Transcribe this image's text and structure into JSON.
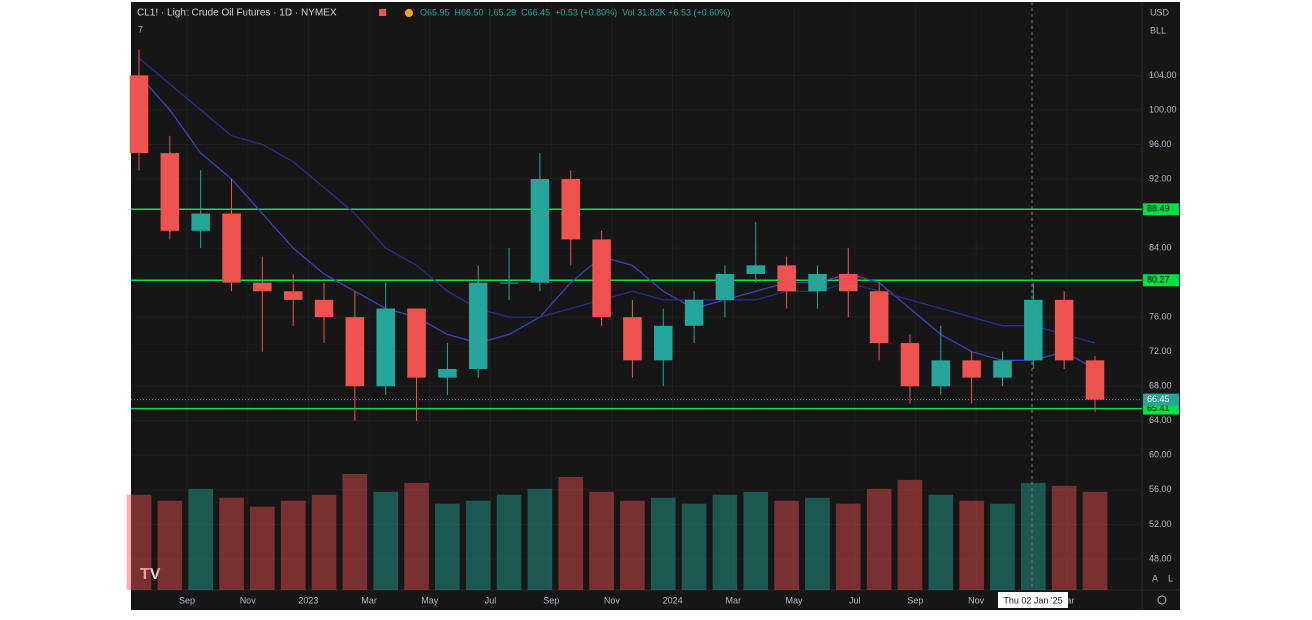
{
  "chart_data": {
    "type": "candlestick",
    "title": "CL1! · Light Crude Oil Futures · 1D · NYMEX",
    "legend_values": [
      "O65.95",
      "H66.50",
      "L65.29",
      "C66.45",
      "+0.53 (+0.80%)",
      "Vol 31.82K +6.53 (+0.60%)"
    ],
    "currency": "USD",
    "unit": "BLL",
    "collapse": "7",
    "open": [
      104,
      95,
      86,
      88,
      80,
      79,
      78,
      76,
      68,
      77,
      69,
      70,
      80,
      80,
      92,
      85,
      76,
      71,
      75,
      78,
      81,
      82,
      79,
      81,
      79,
      73,
      68,
      71,
      69,
      71,
      78,
      71
    ],
    "high": [
      107,
      97,
      93,
      92,
      83,
      81,
      80,
      79,
      80,
      77,
      73,
      82,
      84,
      95,
      93,
      86,
      78,
      77,
      79,
      82,
      87,
      83,
      82,
      84,
      80,
      74,
      75,
      72,
      72,
      80,
      79,
      71.5
    ],
    "low": [
      93,
      85,
      84,
      79,
      72,
      75,
      73,
      64,
      67,
      64,
      67,
      69,
      78,
      79,
      82,
      75,
      69,
      68,
      73,
      76,
      80,
      77,
      77,
      76,
      71,
      66,
      67,
      66,
      68,
      70,
      70,
      65
    ],
    "close": [
      95,
      86,
      88,
      80,
      79,
      78,
      76,
      68,
      77,
      69,
      70,
      80,
      80,
      92,
      85,
      76,
      71,
      75,
      78,
      81,
      82,
      79,
      81,
      79,
      73,
      68,
      71,
      69,
      71,
      78,
      71,
      66.45
    ],
    "volume": [
      320,
      300,
      340,
      310,
      280,
      300,
      320,
      390,
      330,
      360,
      290,
      300,
      320,
      340,
      380,
      330,
      300,
      310,
      290,
      320,
      330,
      300,
      310,
      290,
      340,
      370,
      320,
      300,
      290,
      360,
      350,
      330
    ],
    "volume_lim": [
      0,
      420
    ],
    "moving_averages": [
      {
        "color": "#3d3fb8",
        "values": [
          104,
          100,
          95,
          92,
          88,
          84,
          81,
          79,
          77,
          76,
          74,
          73,
          74,
          76,
          80,
          83,
          82,
          79,
          77,
          78,
          79,
          80,
          80,
          81,
          80,
          77,
          74,
          72,
          71,
          71,
          72,
          70
        ]
      },
      {
        "color": "#2a2c8a",
        "values": [
          106,
          103,
          100,
          97,
          96,
          94,
          91,
          88,
          84,
          82,
          79,
          77,
          76,
          76,
          77,
          78,
          79,
          78,
          78,
          78,
          78,
          79,
          79,
          80,
          79,
          78,
          77,
          76,
          75,
          75,
          74,
          73
        ]
      }
    ],
    "up_color": "#26a69a",
    "down_color": "#ef5350",
    "levels": [
      88.49,
      80.27,
      65.41
    ],
    "level_color": "#00e04a",
    "ylim": [
      44.4,
      112.5
    ],
    "yticks": [
      {
        "value": 48,
        "label": "48.00"
      },
      {
        "value": 52,
        "label": "52.00"
      },
      {
        "value": 56,
        "label": "56.00"
      },
      {
        "value": 60,
        "label": "60.00"
      },
      {
        "value": 64,
        "label": "64.00"
      },
      {
        "value": 68,
        "label": "68.00"
      },
      {
        "value": 72,
        "label": "72.00"
      },
      {
        "value": 76,
        "label": "76.00"
      },
      {
        "value": 84,
        "label": "84.00"
      },
      {
        "value": 92,
        "label": "92.00"
      },
      {
        "value": 96,
        "label": "96.00"
      },
      {
        "value": 100,
        "label": "100.00"
      },
      {
        "value": 104,
        "label": "104.00"
      }
    ],
    "time_labels": [
      "Sep",
      "Nov",
      "2023",
      "Mar",
      "May",
      "Jul",
      "Sep",
      "Nov",
      "2024",
      "Mar",
      "May",
      "Jul",
      "Sep",
      "Nov",
      "Mar"
    ],
    "crosshair_label": "Thu 02 Jan '25",
    "scale_buttons": [
      "A",
      "L"
    ],
    "grid": true
  }
}
